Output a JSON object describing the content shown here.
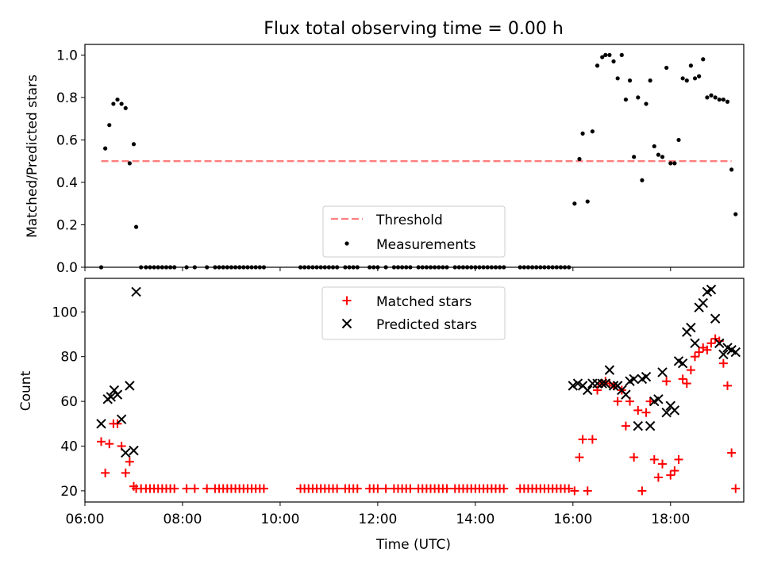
{
  "figure": {
    "title": "Flux total observing time = 0.00 h",
    "xlabel": "Time (UTC)"
  },
  "colors": {
    "threshold": "#ff7f7f",
    "measurements": "#000000",
    "matched": "#ff0000",
    "predicted": "#000000"
  },
  "chart_data": [
    {
      "type": "scatter",
      "panel": "top",
      "ylabel": "Matched/Predicted stars",
      "xlim": [
        "06:00",
        "19:30"
      ],
      "ylim": [
        0,
        1.05
      ],
      "yticks": [
        "0.0",
        "0.2",
        "0.4",
        "0.6",
        "0.8",
        "1.0"
      ],
      "legend": {
        "placement": "lower center",
        "entries": [
          "Threshold",
          "Measurements"
        ]
      },
      "series": [
        {
          "name": "Threshold",
          "style": "dashed-line",
          "x": [
            "06:20",
            "19:15"
          ],
          "y": [
            0.5,
            0.5
          ]
        },
        {
          "name": "Measurements",
          "style": "dot",
          "x": [
            "06:20",
            "06:25",
            "06:30",
            "06:35",
            "06:40",
            "06:45",
            "06:50",
            "06:55",
            "07:00",
            "07:03",
            "07:09",
            "07:15",
            "07:20",
            "07:25",
            "07:30",
            "07:35",
            "07:40",
            "07:45",
            "07:50",
            "08:05",
            "08:15",
            "08:30",
            "08:40",
            "08:45",
            "08:50",
            "08:55",
            "09:00",
            "09:05",
            "09:10",
            "09:15",
            "09:20",
            "09:25",
            "09:30",
            "09:35",
            "09:40",
            "10:25",
            "10:30",
            "10:35",
            "10:40",
            "10:45",
            "10:50",
            "10:55",
            "11:00",
            "11:05",
            "11:10",
            "11:20",
            "11:25",
            "11:30",
            "11:35",
            "11:50",
            "11:55",
            "12:00",
            "12:10",
            "12:20",
            "12:25",
            "12:30",
            "12:35",
            "12:40",
            "12:50",
            "12:55",
            "13:00",
            "13:05",
            "13:10",
            "13:15",
            "13:20",
            "13:25",
            "13:35",
            "13:40",
            "13:45",
            "13:50",
            "13:55",
            "14:00",
            "14:05",
            "14:10",
            "14:15",
            "14:20",
            "14:25",
            "14:30",
            "14:35",
            "14:55",
            "15:00",
            "15:05",
            "15:10",
            "15:15",
            "15:20",
            "15:25",
            "15:30",
            "15:35",
            "15:40",
            "15:45",
            "15:50",
            "15:55",
            "16:02",
            "16:08",
            "16:12",
            "16:18",
            "16:24",
            "16:30",
            "16:36",
            "16:40",
            "16:45",
            "16:50",
            "16:55",
            "17:00",
            "17:05",
            "17:10",
            "17:15",
            "17:20",
            "17:25",
            "17:30",
            "17:35",
            "17:40",
            "17:45",
            "17:50",
            "17:55",
            "18:00",
            "18:05",
            "18:10",
            "18:15",
            "18:20",
            "18:25",
            "18:30",
            "18:35",
            "18:40",
            "18:45",
            "18:50",
            "18:55",
            "19:00",
            "19:05",
            "19:10",
            "19:15",
            "19:20"
          ],
          "y": [
            0.0,
            0.56,
            0.67,
            0.77,
            0.79,
            0.77,
            0.75,
            0.49,
            0.58,
            0.19,
            0,
            0,
            0,
            0,
            0,
            0,
            0,
            0,
            0,
            0,
            0,
            0,
            0,
            0,
            0,
            0,
            0,
            0,
            0,
            0,
            0,
            0,
            0,
            0,
            0,
            0,
            0,
            0,
            0,
            0,
            0,
            0,
            0,
            0,
            0,
            0,
            0,
            0,
            0,
            0,
            0,
            0,
            0,
            0,
            0,
            0,
            0,
            0,
            0,
            0,
            0,
            0,
            0,
            0,
            0,
            0,
            0,
            0,
            0,
            0,
            0,
            0,
            0,
            0,
            0,
            0,
            0,
            0,
            0,
            0,
            0,
            0,
            0,
            0,
            0,
            0,
            0,
            0,
            0,
            0,
            0,
            0,
            0.3,
            0.51,
            0.63,
            0.31,
            0.64,
            0.95,
            0.99,
            1.0,
            1.0,
            0.97,
            0.89,
            1.0,
            0.79,
            0.88,
            0.52,
            0.8,
            0.41,
            0.77,
            0.88,
            0.57,
            0.53,
            0.52,
            0.94,
            0.49,
            0.49,
            0.6,
            0.89,
            0.88,
            0.95,
            0.89,
            0.9,
            0.98,
            0.8,
            0.81,
            0.8,
            0.79,
            0.79,
            0.78,
            0.46,
            0.25
          ]
        }
      ]
    },
    {
      "type": "scatter",
      "panel": "bottom",
      "ylabel": "Count",
      "xlim": [
        "06:00",
        "19:30"
      ],
      "ylim": [
        15,
        115
      ],
      "xticks": [
        "06:00",
        "08:00",
        "10:00",
        "12:00",
        "14:00",
        "16:00",
        "18:00"
      ],
      "yticks": [
        "20",
        "40",
        "60",
        "80",
        "100"
      ],
      "legend": {
        "placement": "upper center",
        "entries": [
          "Matched stars",
          "Predicted stars"
        ]
      },
      "series": [
        {
          "name": "Matched stars",
          "style": "plus",
          "x": [
            "06:20",
            "06:25",
            "06:30",
            "06:35",
            "06:40",
            "06:45",
            "06:50",
            "06:55",
            "07:00",
            "07:03",
            "07:09",
            "07:15",
            "07:20",
            "07:25",
            "07:30",
            "07:35",
            "07:40",
            "07:45",
            "07:50",
            "08:05",
            "08:15",
            "08:30",
            "08:40",
            "08:45",
            "08:50",
            "08:55",
            "09:00",
            "09:05",
            "09:10",
            "09:15",
            "09:20",
            "09:25",
            "09:30",
            "09:35",
            "09:40",
            "10:25",
            "10:30",
            "10:35",
            "10:40",
            "10:45",
            "10:50",
            "10:55",
            "11:00",
            "11:05",
            "11:10",
            "11:20",
            "11:25",
            "11:30",
            "11:35",
            "11:50",
            "11:55",
            "12:00",
            "12:10",
            "12:20",
            "12:25",
            "12:30",
            "12:35",
            "12:40",
            "12:50",
            "12:55",
            "13:00",
            "13:05",
            "13:10",
            "13:15",
            "13:20",
            "13:25",
            "13:35",
            "13:40",
            "13:45",
            "13:50",
            "13:55",
            "14:00",
            "14:05",
            "14:10",
            "14:15",
            "14:20",
            "14:25",
            "14:30",
            "14:35",
            "14:55",
            "15:00",
            "15:05",
            "15:10",
            "15:15",
            "15:20",
            "15:25",
            "15:30",
            "15:35",
            "15:40",
            "15:45",
            "15:50",
            "15:55",
            "16:02",
            "16:08",
            "16:12",
            "16:18",
            "16:24",
            "16:30",
            "16:36",
            "16:40",
            "16:45",
            "16:50",
            "16:55",
            "17:00",
            "17:05",
            "17:10",
            "17:15",
            "17:20",
            "17:25",
            "17:30",
            "17:35",
            "17:40",
            "17:45",
            "17:50",
            "17:55",
            "18:00",
            "18:05",
            "18:10",
            "18:15",
            "18:20",
            "18:25",
            "18:30",
            "18:35",
            "18:40",
            "18:45",
            "18:50",
            "18:55",
            "19:00",
            "19:05",
            "19:10",
            "19:15",
            "19:20"
          ],
          "y": [
            42,
            28,
            41,
            50,
            50,
            40,
            28,
            33,
            22,
            21,
            21,
            21,
            21,
            21,
            21,
            21,
            21,
            21,
            21,
            21,
            21,
            21,
            21,
            21,
            21,
            21,
            21,
            21,
            21,
            21,
            21,
            21,
            21,
            21,
            21,
            21,
            21,
            21,
            21,
            21,
            21,
            21,
            21,
            21,
            21,
            21,
            21,
            21,
            21,
            21,
            21,
            21,
            21,
            21,
            21,
            21,
            21,
            21,
            21,
            21,
            21,
            21,
            21,
            21,
            21,
            21,
            21,
            21,
            21,
            21,
            21,
            21,
            21,
            21,
            21,
            21,
            21,
            21,
            21,
            21,
            21,
            21,
            21,
            21,
            21,
            21,
            21,
            21,
            21,
            21,
            21,
            21,
            20,
            35,
            43,
            20,
            43,
            65,
            68,
            69,
            68,
            67,
            60,
            65,
            49,
            60,
            35,
            56,
            20,
            55,
            60,
            34,
            26,
            32,
            69,
            27,
            29,
            34,
            70,
            68,
            74,
            80,
            82,
            84,
            83,
            86,
            88,
            87,
            77,
            67,
            37,
            21
          ]
        },
        {
          "name": "Predicted stars",
          "style": "x",
          "x": [
            "06:20",
            "06:28",
            "06:32",
            "06:36",
            "06:40",
            "06:45",
            "06:50",
            "06:55",
            "07:00",
            "07:03",
            "16:00",
            "16:06",
            "16:12",
            "16:18",
            "16:24",
            "16:30",
            "16:36",
            "16:40",
            "16:45",
            "16:50",
            "16:55",
            "17:00",
            "17:05",
            "17:10",
            "17:15",
            "17:20",
            "17:25",
            "17:30",
            "17:35",
            "17:40",
            "17:45",
            "17:50",
            "17:55",
            "18:00",
            "18:05",
            "18:10",
            "18:15",
            "18:20",
            "18:25",
            "18:30",
            "18:35",
            "18:40",
            "18:45",
            "18:50",
            "18:55",
            "19:00",
            "19:05",
            "19:10",
            "19:15",
            "19:20"
          ],
          "y": [
            50,
            61,
            62,
            65,
            63,
            52,
            37,
            67,
            38,
            109,
            67,
            68,
            67,
            65,
            68,
            68,
            68,
            68,
            74,
            67,
            67,
            65,
            63,
            69,
            70,
            49,
            70,
            71,
            49,
            60,
            61,
            73,
            55,
            58,
            56,
            78,
            77,
            91,
            93,
            86,
            102,
            104,
            109,
            110,
            97,
            86,
            81,
            84,
            83,
            82
          ]
        }
      ]
    }
  ]
}
